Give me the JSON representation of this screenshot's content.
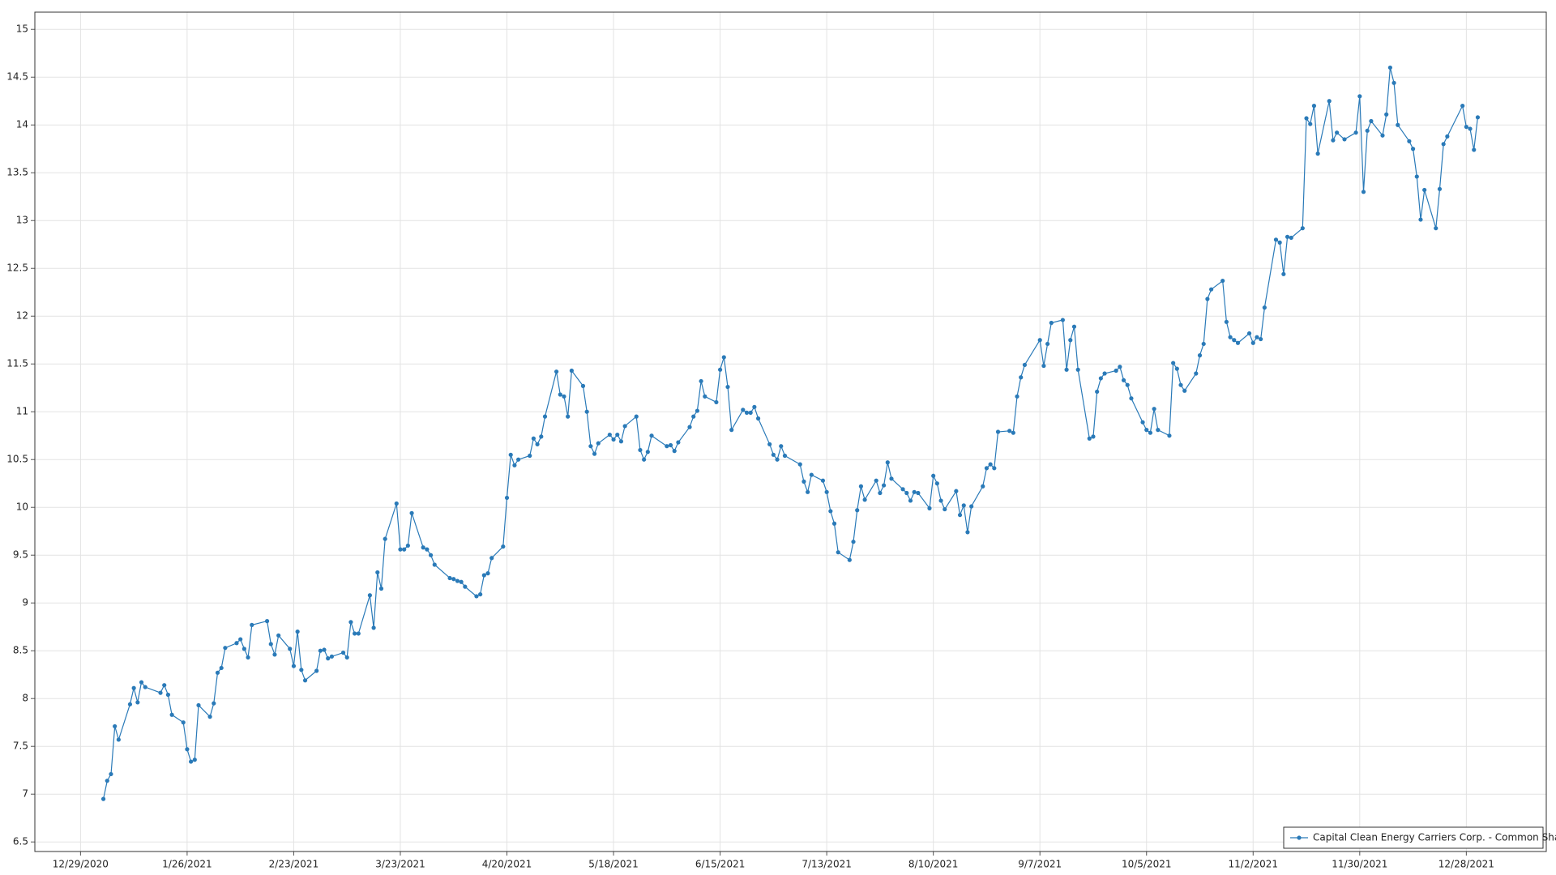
{
  "chart_data": {
    "type": "line",
    "x": [
      "1/4/2021",
      "1/5/2021",
      "1/6/2021",
      "1/7/2021",
      "1/8/2021",
      "1/11/2021",
      "1/12/2021",
      "1/13/2021",
      "1/14/2021",
      "1/15/2021",
      "1/19/2021",
      "1/20/2021",
      "1/21/2021",
      "1/22/2021",
      "1/25/2021",
      "1/26/2021",
      "1/27/2021",
      "1/28/2021",
      "1/29/2021",
      "2/1/2021",
      "2/2/2021",
      "2/3/2021",
      "2/4/2021",
      "2/5/2021",
      "2/8/2021",
      "2/9/2021",
      "2/10/2021",
      "2/11/2021",
      "2/12/2021",
      "2/16/2021",
      "2/17/2021",
      "2/18/2021",
      "2/19/2021",
      "2/22/2021",
      "2/23/2021",
      "2/24/2021",
      "2/25/2021",
      "2/26/2021",
      "3/1/2021",
      "3/2/2021",
      "3/3/2021",
      "3/4/2021",
      "3/5/2021",
      "3/8/2021",
      "3/9/2021",
      "3/10/2021",
      "3/11/2021",
      "3/12/2021",
      "3/15/2021",
      "3/16/2021",
      "3/17/2021",
      "3/18/2021",
      "3/19/2021",
      "3/22/2021",
      "3/23/2021",
      "3/24/2021",
      "3/25/2021",
      "3/26/2021",
      "3/29/2021",
      "3/30/2021",
      "3/31/2021",
      "4/1/2021",
      "4/5/2021",
      "4/6/2021",
      "4/7/2021",
      "4/8/2021",
      "4/9/2021",
      "4/12/2021",
      "4/13/2021",
      "4/14/2021",
      "4/15/2021",
      "4/16/2021",
      "4/19/2021",
      "4/20/2021",
      "4/21/2021",
      "4/22/2021",
      "4/23/2021",
      "4/26/2021",
      "4/27/2021",
      "4/28/2021",
      "4/29/2021",
      "4/30/2021",
      "5/3/2021",
      "5/4/2021",
      "5/5/2021",
      "5/6/2021",
      "5/7/2021",
      "5/10/2021",
      "5/11/2021",
      "5/12/2021",
      "5/13/2021",
      "5/14/2021",
      "5/17/2021",
      "5/18/2021",
      "5/19/2021",
      "5/20/2021",
      "5/21/2021",
      "5/24/2021",
      "5/25/2021",
      "5/26/2021",
      "5/27/2021",
      "5/28/2021",
      "6/1/2021",
      "6/2/2021",
      "6/3/2021",
      "6/4/2021",
      "6/7/2021",
      "6/8/2021",
      "6/9/2021",
      "6/10/2021",
      "6/11/2021",
      "6/14/2021",
      "6/15/2021",
      "6/16/2021",
      "6/17/2021",
      "6/18/2021",
      "6/21/2021",
      "6/22/2021",
      "6/23/2021",
      "6/24/2021",
      "6/25/2021",
      "6/28/2021",
      "6/29/2021",
      "6/30/2021",
      "7/1/2021",
      "7/2/2021",
      "7/6/2021",
      "7/7/2021",
      "7/8/2021",
      "7/9/2021",
      "7/12/2021",
      "7/13/2021",
      "7/14/2021",
      "7/15/2021",
      "7/16/2021",
      "7/19/2021",
      "7/20/2021",
      "7/21/2021",
      "7/22/2021",
      "7/23/2021",
      "7/26/2021",
      "7/27/2021",
      "7/28/2021",
      "7/29/2021",
      "7/30/2021",
      "8/2/2021",
      "8/3/2021",
      "8/4/2021",
      "8/5/2021",
      "8/6/2021",
      "8/9/2021",
      "8/10/2021",
      "8/11/2021",
      "8/12/2021",
      "8/13/2021",
      "8/16/2021",
      "8/17/2021",
      "8/18/2021",
      "8/19/2021",
      "8/20/2021",
      "8/23/2021",
      "8/24/2021",
      "8/25/2021",
      "8/26/2021",
      "8/27/2021",
      "8/30/2021",
      "8/31/2021",
      "9/1/2021",
      "9/2/2021",
      "9/3/2021",
      "9/7/2021",
      "9/8/2021",
      "9/9/2021",
      "9/10/2021",
      "9/13/2021",
      "9/14/2021",
      "9/15/2021",
      "9/16/2021",
      "9/17/2021",
      "9/20/2021",
      "9/21/2021",
      "9/22/2021",
      "9/23/2021",
      "9/24/2021",
      "9/27/2021",
      "9/28/2021",
      "9/29/2021",
      "9/30/2021",
      "10/1/2021",
      "10/4/2021",
      "10/5/2021",
      "10/6/2021",
      "10/7/2021",
      "10/8/2021",
      "10/11/2021",
      "10/12/2021",
      "10/13/2021",
      "10/14/2021",
      "10/15/2021",
      "10/18/2021",
      "10/19/2021",
      "10/20/2021",
      "10/21/2021",
      "10/22/2021",
      "10/25/2021",
      "10/26/2021",
      "10/27/2021",
      "10/28/2021",
      "10/29/2021",
      "11/1/2021",
      "11/2/2021",
      "11/3/2021",
      "11/4/2021",
      "11/5/2021",
      "11/8/2021",
      "11/9/2021",
      "11/10/2021",
      "11/11/2021",
      "11/12/2021",
      "11/15/2021",
      "11/16/2021",
      "11/17/2021",
      "11/18/2021",
      "11/19/2021",
      "11/22/2021",
      "11/23/2021",
      "11/24/2021",
      "11/26/2021",
      "11/29/2021",
      "11/30/2021",
      "12/1/2021",
      "12/2/2021",
      "12/3/2021",
      "12/6/2021",
      "12/7/2021",
      "12/8/2021",
      "12/9/2021",
      "12/10/2021",
      "12/13/2021",
      "12/14/2021",
      "12/15/2021",
      "12/16/2021",
      "12/17/2021",
      "12/20/2021",
      "12/21/2021",
      "12/22/2021",
      "12/23/2021",
      "12/27/2021",
      "12/28/2021",
      "12/29/2021",
      "12/30/2021",
      "12/31/2021"
    ],
    "series": [
      {
        "name": "Capital Clean Energy Carriers Corp. - Common Share",
        "color": "#2a7ab8",
        "values": [
          6.95,
          7.14,
          7.21,
          7.71,
          7.57,
          7.94,
          8.11,
          7.96,
          8.17,
          8.12,
          8.06,
          8.14,
          8.04,
          7.83,
          7.75,
          7.47,
          7.34,
          7.36,
          7.93,
          7.81,
          7.95,
          8.27,
          8.32,
          8.53,
          8.58,
          8.62,
          8.52,
          8.43,
          8.77,
          8.81,
          8.57,
          8.46,
          8.66,
          8.52,
          8.34,
          8.7,
          8.3,
          8.19,
          8.29,
          8.5,
          8.51,
          8.42,
          8.44,
          8.48,
          8.43,
          8.8,
          8.68,
          8.68,
          9.08,
          8.74,
          9.32,
          9.15,
          9.67,
          10.04,
          9.56,
          9.56,
          9.6,
          9.94,
          9.58,
          9.56,
          9.5,
          9.4,
          9.26,
          9.25,
          9.23,
          9.22,
          9.17,
          9.07,
          9.09,
          9.29,
          9.31,
          9.47,
          9.59,
          10.1,
          10.55,
          10.44,
          10.5,
          10.54,
          10.72,
          10.66,
          10.74,
          10.95,
          11.42,
          11.18,
          11.16,
          10.95,
          11.43,
          11.27,
          11,
          10.64,
          10.56,
          10.67,
          10.76,
          10.71,
          10.76,
          10.69,
          10.85,
          10.95,
          10.6,
          10.5,
          10.58,
          10.75,
          10.64,
          10.65,
          10.59,
          10.68,
          10.84,
          10.95,
          11.01,
          11.32,
          11.16,
          11.1,
          11.44,
          11.57,
          11.26,
          10.81,
          11.02,
          10.99,
          10.99,
          11.05,
          10.93,
          10.66,
          10.55,
          10.5,
          10.64,
          10.54,
          10.45,
          10.27,
          10.16,
          10.34,
          10.28,
          10.16,
          9.96,
          9.83,
          9.53,
          9.45,
          9.64,
          9.97,
          10.22,
          10.08,
          10.28,
          10.15,
          10.23,
          10.47,
          10.3,
          10.19,
          10.15,
          10.07,
          10.16,
          10.15,
          9.99,
          10.33,
          10.25,
          10.07,
          9.98,
          10.17,
          9.92,
          10.02,
          9.74,
          10.01,
          10.22,
          10.41,
          10.45,
          10.41,
          10.79,
          10.8,
          10.78,
          11.16,
          11.36,
          11.49,
          11.75,
          11.48,
          11.71,
          11.93,
          11.96,
          11.44,
          11.75,
          11.89,
          11.44,
          10.72,
          10.74,
          11.21,
          11.35,
          11.4,
          11.43,
          11.47,
          11.33,
          11.28,
          11.14,
          10.89,
          10.81,
          10.78,
          11.03,
          10.81,
          10.75,
          11.51,
          11.45,
          11.28,
          11.22,
          11.4,
          11.59,
          11.71,
          12.18,
          12.28,
          12.37,
          11.94,
          11.78,
          11.75,
          11.72,
          11.82,
          11.72,
          11.78,
          11.76,
          12.09,
          12.8,
          12.77,
          12.44,
          12.83,
          12.82,
          12.92,
          14.07,
          14.01,
          14.2,
          13.7,
          14.25,
          13.84,
          13.92,
          13.85,
          13.92,
          14.3,
          13.3,
          13.94,
          14.04,
          13.89,
          14.11,
          14.6,
          14.44,
          14,
          13.83,
          13.75,
          13.46,
          13.01,
          13.32,
          12.92,
          13.33,
          13.8,
          13.88,
          14.2,
          13.98,
          13.96,
          13.74,
          14.08
        ]
      }
    ],
    "xlim": [
      "12/17/2020",
      "1/18/2022"
    ],
    "xticks": [
      "12/29/2020",
      "1/26/2021",
      "2/23/2021",
      "3/23/2021",
      "4/20/2021",
      "5/18/2021",
      "6/15/2021",
      "7/13/2021",
      "8/10/2021",
      "9/7/2021",
      "10/5/2021",
      "11/2/2021",
      "11/30/2021",
      "12/28/2021"
    ],
    "ylim": [
      6.4,
      15.18
    ],
    "yticks": [
      6.5,
      7,
      7.5,
      8,
      8.5,
      9,
      9.5,
      10,
      10.5,
      11,
      11.5,
      12,
      12.5,
      13,
      13.5,
      14,
      14.5,
      15
    ],
    "grid": true,
    "legend": "lower right"
  }
}
